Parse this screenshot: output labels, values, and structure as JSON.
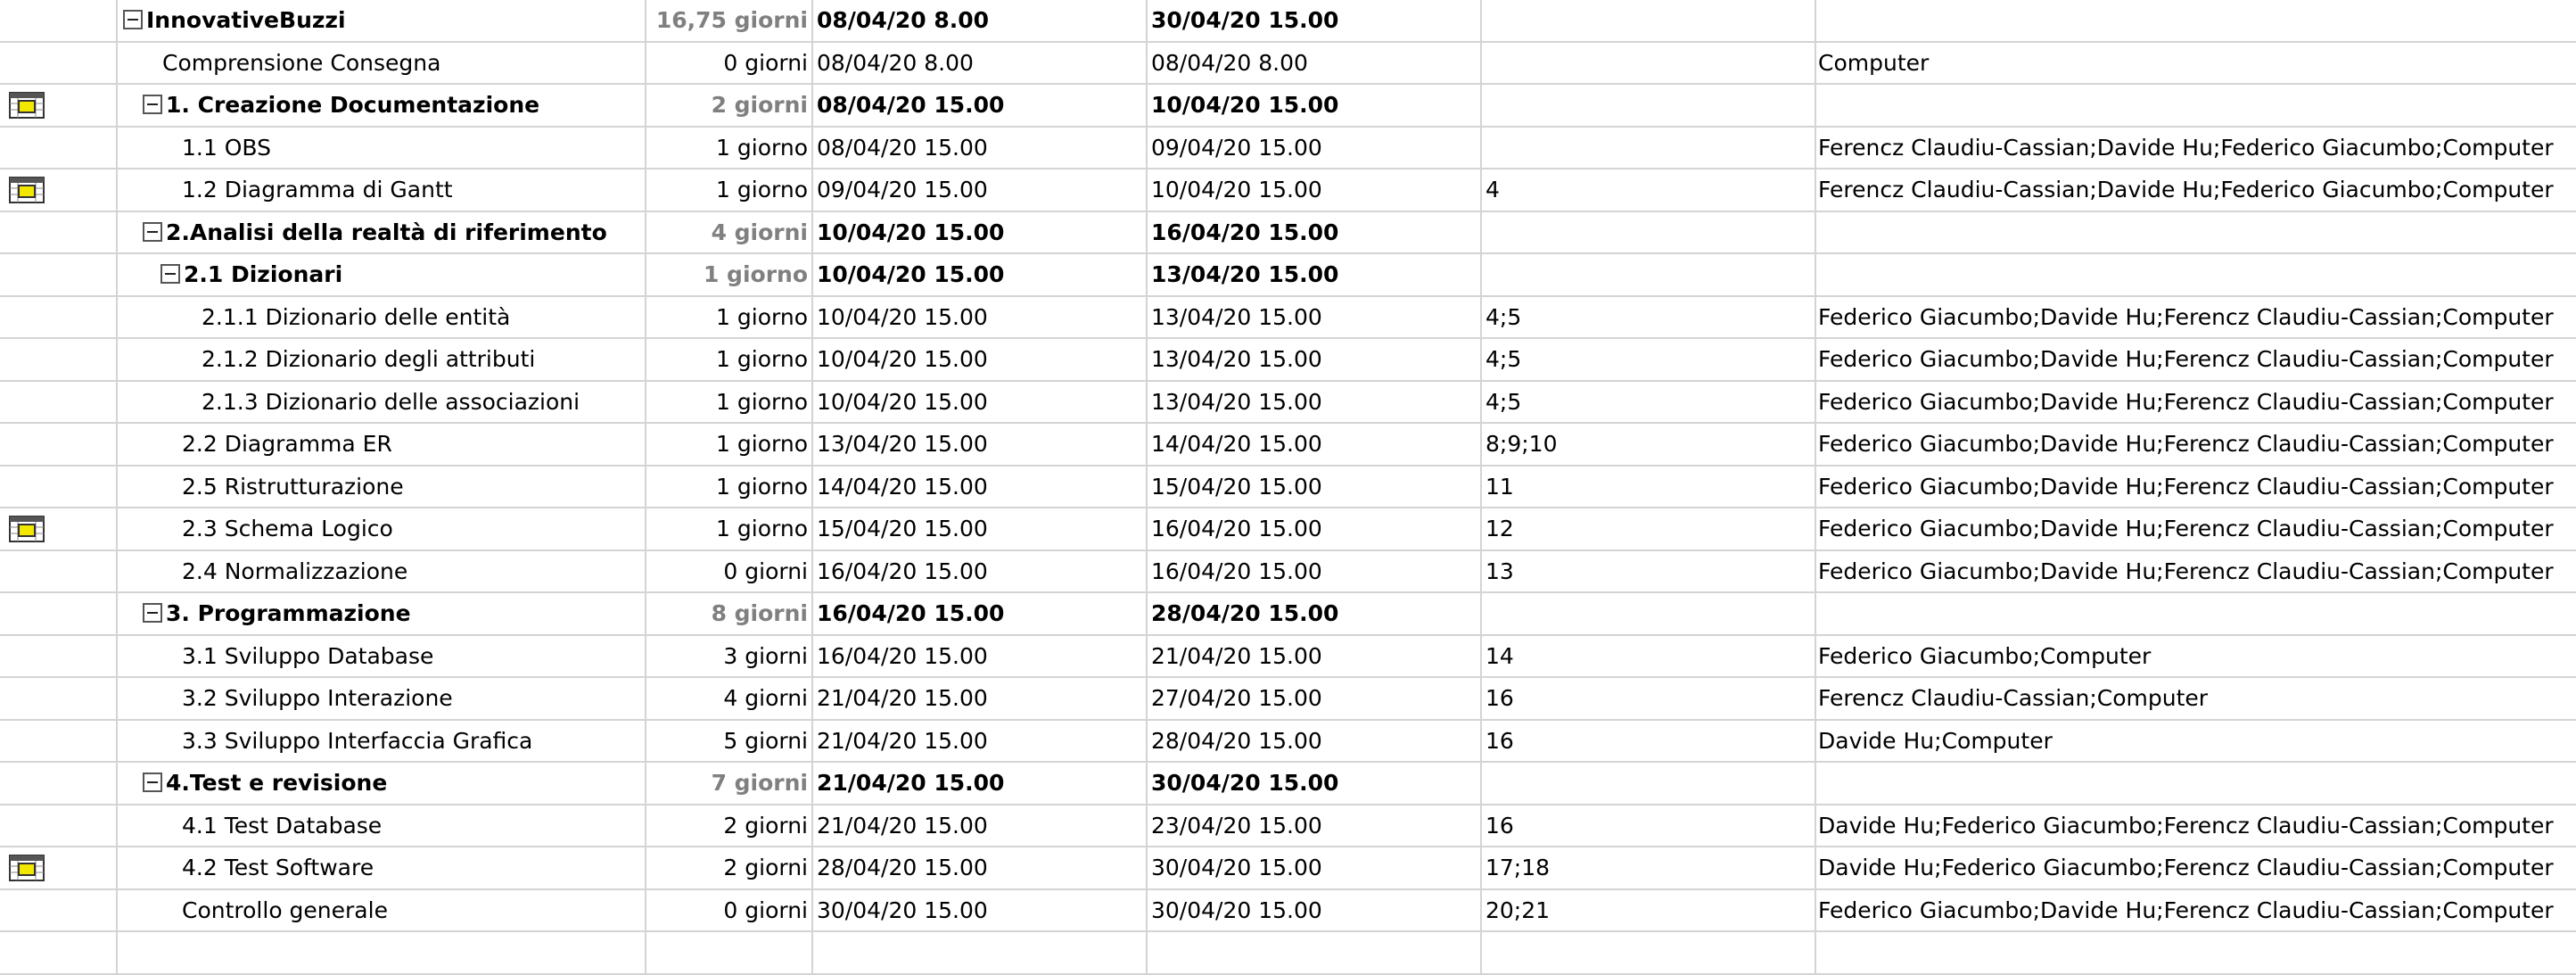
{
  "rows": [
    {
      "name": "InnovativeBuzzi",
      "duration": "16,75 giorni",
      "start": "08/04/20 8.00",
      "end": "30/04/20 15.00",
      "pred": "",
      "res": "",
      "summary": true,
      "level": 0,
      "indicator": false
    },
    {
      "name": "Comprensione Consegna",
      "duration": "0 giorni",
      "start": "08/04/20 8.00",
      "end": "08/04/20 8.00",
      "pred": "",
      "res": "Computer",
      "summary": false,
      "level": 1,
      "indicator": false
    },
    {
      "name": "1. Creazione Documentazione",
      "duration": "2 giorni",
      "start": "08/04/20 15.00",
      "end": "10/04/20 15.00",
      "pred": "",
      "res": "",
      "summary": true,
      "level": 1,
      "indicator": true
    },
    {
      "name": "1.1 OBS",
      "duration": "1 giorno",
      "start": "08/04/20 15.00",
      "end": "09/04/20 15.00",
      "pred": "",
      "res": "Ferencz Claudiu-Cassian;Davide Hu;Federico Giacumbo;Computer",
      "summary": false,
      "level": 2,
      "indicator": false
    },
    {
      "name": "1.2 Diagramma di Gantt",
      "duration": "1 giorno",
      "start": "09/04/20 15.00",
      "end": "10/04/20 15.00",
      "pred": "4",
      "res": "Ferencz Claudiu-Cassian;Davide Hu;Federico Giacumbo;Computer",
      "summary": false,
      "level": 2,
      "indicator": true
    },
    {
      "name": "2.Analisi della realtà di riferimento",
      "duration": "4 giorni",
      "start": "10/04/20 15.00",
      "end": "16/04/20 15.00",
      "pred": "",
      "res": "",
      "summary": true,
      "level": 1,
      "indicator": false
    },
    {
      "name": "2.1 Dizionari",
      "duration": "1 giorno",
      "start": "10/04/20 15.00",
      "end": "13/04/20 15.00",
      "pred": "",
      "res": "",
      "summary": true,
      "level": 2,
      "indicator": false
    },
    {
      "name": "2.1.1 Dizionario delle entità",
      "duration": "1 giorno",
      "start": "10/04/20 15.00",
      "end": "13/04/20 15.00",
      "pred": "4;5",
      "res": "Federico Giacumbo;Davide Hu;Ferencz Claudiu-Cassian;Computer",
      "summary": false,
      "level": 3,
      "indicator": false
    },
    {
      "name": "2.1.2 Dizionario degli attributi",
      "duration": "1 giorno",
      "start": "10/04/20 15.00",
      "end": "13/04/20 15.00",
      "pred": "4;5",
      "res": "Federico Giacumbo;Davide Hu;Ferencz Claudiu-Cassian;Computer",
      "summary": false,
      "level": 3,
      "indicator": false
    },
    {
      "name": "2.1.3 Dizionario delle associazioni",
      "duration": "1 giorno",
      "start": "10/04/20 15.00",
      "end": "13/04/20 15.00",
      "pred": "4;5",
      "res": "Federico Giacumbo;Davide Hu;Ferencz Claudiu-Cassian;Computer",
      "summary": false,
      "level": 3,
      "indicator": false
    },
    {
      "name": "2.2 Diagramma ER",
      "duration": "1 giorno",
      "start": "13/04/20 15.00",
      "end": "14/04/20 15.00",
      "pred": "8;9;10",
      "res": "Federico Giacumbo;Davide Hu;Ferencz Claudiu-Cassian;Computer",
      "summary": false,
      "level": 2,
      "indicator": false
    },
    {
      "name": "2.5 Ristrutturazione",
      "duration": "1 giorno",
      "start": "14/04/20 15.00",
      "end": "15/04/20 15.00",
      "pred": "11",
      "res": "Federico Giacumbo;Davide Hu;Ferencz Claudiu-Cassian;Computer",
      "summary": false,
      "level": 2,
      "indicator": false
    },
    {
      "name": "2.3 Schema Logico",
      "duration": "1 giorno",
      "start": "15/04/20 15.00",
      "end": "16/04/20 15.00",
      "pred": "12",
      "res": "Federico Giacumbo;Davide Hu;Ferencz Claudiu-Cassian;Computer",
      "summary": false,
      "level": 2,
      "indicator": true
    },
    {
      "name": "2.4 Normalizzazione",
      "duration": "0 giorni",
      "start": "16/04/20 15.00",
      "end": "16/04/20 15.00",
      "pred": "13",
      "res": "Federico Giacumbo;Davide Hu;Ferencz Claudiu-Cassian;Computer",
      "summary": false,
      "level": 2,
      "indicator": false
    },
    {
      "name": "3.  Programmazione",
      "duration": "8 giorni",
      "start": "16/04/20 15.00",
      "end": "28/04/20 15.00",
      "pred": "",
      "res": "",
      "summary": true,
      "level": 1,
      "indicator": false
    },
    {
      "name": "3.1 Sviluppo Database",
      "duration": "3 giorni",
      "start": "16/04/20 15.00",
      "end": "21/04/20 15.00",
      "pred": "14",
      "res": "Federico Giacumbo;Computer",
      "summary": false,
      "level": 2,
      "indicator": false
    },
    {
      "name": "3.2 Sviluppo Interazione",
      "duration": "4 giorni",
      "start": "21/04/20 15.00",
      "end": "27/04/20 15.00",
      "pred": "16",
      "res": "Ferencz Claudiu-Cassian;Computer",
      "summary": false,
      "level": 2,
      "indicator": false
    },
    {
      "name": "3.3 Sviluppo Interfaccia Grafica",
      "duration": "5 giorni",
      "start": "21/04/20 15.00",
      "end": "28/04/20 15.00",
      "pred": "16",
      "res": "Davide Hu;Computer",
      "summary": false,
      "level": 2,
      "indicator": false
    },
    {
      "name": "4.Test e revisione",
      "duration": "7 giorni",
      "start": "21/04/20 15.00",
      "end": "30/04/20 15.00",
      "pred": "",
      "res": "",
      "summary": true,
      "level": 1,
      "indicator": false
    },
    {
      "name": "4.1  Test Database",
      "duration": "2 giorni",
      "start": "21/04/20 15.00",
      "end": "23/04/20 15.00",
      "pred": "16",
      "res": "Davide Hu;Federico Giacumbo;Ferencz Claudiu-Cassian;Computer",
      "summary": false,
      "level": 2,
      "indicator": false
    },
    {
      "name": "4.2 Test Software",
      "duration": "2 giorni",
      "start": "28/04/20 15.00",
      "end": "30/04/20 15.00",
      "pred": "17;18",
      "res": "Davide Hu;Federico Giacumbo;Ferencz Claudiu-Cassian;Computer",
      "summary": false,
      "level": 2,
      "indicator": true
    },
    {
      "name": "Controllo generale",
      "duration": "0 giorni",
      "start": "30/04/20 15.00",
      "end": "30/04/20 15.00",
      "pred": "20;21",
      "res": "Federico Giacumbo;Davide Hu;Ferencz Claudiu-Cassian;Computer",
      "summary": false,
      "level": 2,
      "indicator": false
    },
    {
      "name": "",
      "duration": "",
      "start": "",
      "end": "",
      "pred": "",
      "res": "",
      "summary": false,
      "level": 0,
      "indicator": false
    }
  ]
}
